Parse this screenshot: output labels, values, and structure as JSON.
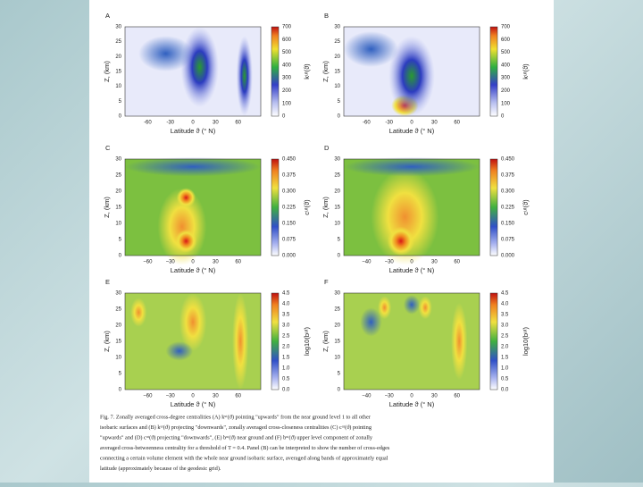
{
  "panels": [
    {
      "label": "A",
      "ylabel": "Z, (km)",
      "xlabel": "Latitude ϑ (° N)",
      "cbar_label": "kᵘᵗ(ϑ)",
      "yticks": [
        "0",
        "5",
        "10",
        "15",
        "20",
        "25",
        "30"
      ],
      "xticks": [
        "-60",
        "-30",
        "0",
        "30",
        "60"
      ],
      "cbar_ticks": [
        "0",
        "100",
        "200",
        "300",
        "400",
        "500",
        "600",
        "700"
      ]
    },
    {
      "label": "B",
      "ylabel": "Z, (km)",
      "xlabel": "Latitude ϑ (° N)",
      "cbar_label": "kᵘᵗ(ϑ)",
      "yticks": [
        "0",
        "5",
        "10",
        "15",
        "20",
        "25",
        "30"
      ],
      "xticks": [
        "-60",
        "-30",
        "0",
        "30",
        "60"
      ],
      "cbar_ticks": [
        "0",
        "100",
        "200",
        "300",
        "400",
        "500",
        "600",
        "700"
      ]
    },
    {
      "label": "C",
      "ylabel": "Z, (km)",
      "xlabel": "Latitude ϑ (° N)",
      "cbar_label": "cᵘᵗ(ϑ)",
      "yticks": [
        "0",
        "5",
        "10",
        "15",
        "20",
        "25",
        "30"
      ],
      "xticks": [
        "−60",
        "−30",
        "0",
        "30",
        "60"
      ],
      "cbar_ticks": [
        "0.000",
        "0.075",
        "0.150",
        "0.225",
        "0.300",
        "0.375",
        "0.450"
      ]
    },
    {
      "label": "D",
      "ylabel": "Z, (km)",
      "xlabel": "Latitude ϑ (° N)",
      "cbar_label": "cᵘᵗ(ϑ)",
      "yticks": [
        "0",
        "5",
        "10",
        "15",
        "20",
        "25",
        "30"
      ],
      "xticks": [
        "−40",
        "−30",
        "0",
        "30",
        "60"
      ],
      "cbar_ticks": [
        "0.000",
        "0.075",
        "0.150",
        "0.225",
        "0.300",
        "0.375",
        "0.450"
      ]
    },
    {
      "label": "E",
      "ylabel": "Z, (km)",
      "xlabel": "Latitude ϑ (° N)",
      "cbar_label": "log10(bᵘᵗ)",
      "yticks": [
        "0",
        "5",
        "10",
        "15",
        "20",
        "25",
        "30"
      ],
      "xticks": [
        "−60",
        "−30",
        "0",
        "30",
        "60"
      ],
      "cbar_ticks": [
        "0.0",
        "0.5",
        "1.0",
        "1.5",
        "2.0",
        "2.5",
        "3.0",
        "3.5",
        "4.0",
        "4.5"
      ]
    },
    {
      "label": "F",
      "ylabel": "Z, (km)",
      "xlabel": "Latitude ϑ (° N)",
      "cbar_label": "log10(bᵘᵗ)",
      "yticks": [
        "0",
        "5",
        "10",
        "15",
        "20",
        "25",
        "30"
      ],
      "xticks": [
        "−40",
        "−30",
        "0",
        "30",
        "60"
      ],
      "cbar_ticks": [
        "0.0",
        "0.5",
        "1.0",
        "1.5",
        "2.0",
        "2.5",
        "3.0",
        "3.5",
        "4.0",
        "4.5"
      ]
    }
  ],
  "caption": {
    "lines": [
      "Fig. 7. Zonally averaged cross-degree centralities (A) kᵘᵗ(ϑ) pointing \"upwards\" from the near ground level 1 to all other",
      "isobaric surfaces and (B) kᵘᵗ(ϑ) projecting \"downwards\", zonally averaged cross-closeness centralities (C) cᵘᵗ(ϑ) pointing",
      "\"upwards\" and (D) cᵘᵗ(ϑ) projecting \"downwards\", (E) bᵘᵗ(ϑ) near ground and (F) bᵘᵗ(ϑ) upper level component of zonally",
      "averaged cross-betweenness centrality for a threshold of T = 0.4. Panel (B) can be interpreted to show the number of cross-edges",
      "connecting a certain volume element with the whole near ground isobaric surface, averaged along bands of approximately equal",
      "latitude (approximately because of the geodesic grid)."
    ]
  }
}
